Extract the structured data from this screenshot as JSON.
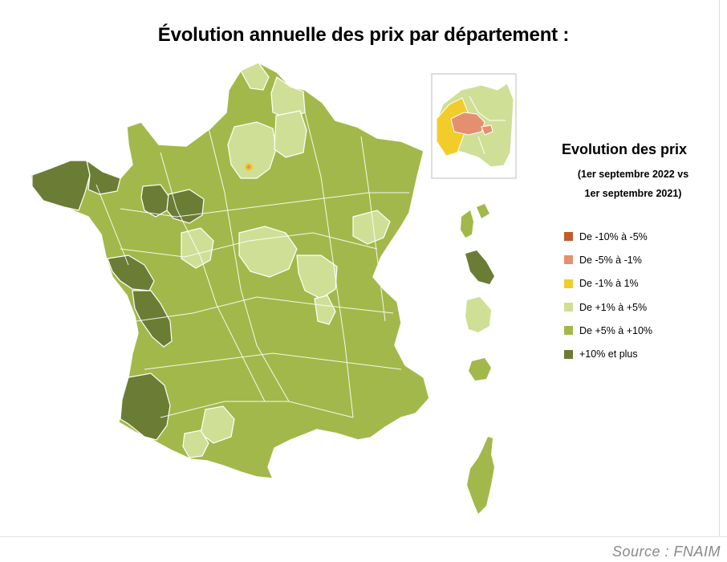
{
  "title": "Évolution annuelle des prix par département :",
  "legend": {
    "title": "Evolution des prix",
    "subtitle_line1": "(1er septembre 2022 vs",
    "subtitle_line2": "1er septembre 2021)",
    "items": [
      {
        "label": "De -10% à -5%",
        "color": "#c45a2a"
      },
      {
        "label": "De -5% à -1%",
        "color": "#e49070"
      },
      {
        "label": "De -1% à 1%",
        "color": "#f2cc2a"
      },
      {
        "label": "De +1% à +5%",
        "color": "#cfdf96"
      },
      {
        "label": "De +5% à +10%",
        "color": "#a3b84a"
      },
      {
        "label": "+10% et plus",
        "color": "#6b7d35"
      }
    ]
  },
  "colors": {
    "base_fill": "#a3b84a",
    "border": "#ffffff"
  },
  "source": "Source : FNAIM"
}
